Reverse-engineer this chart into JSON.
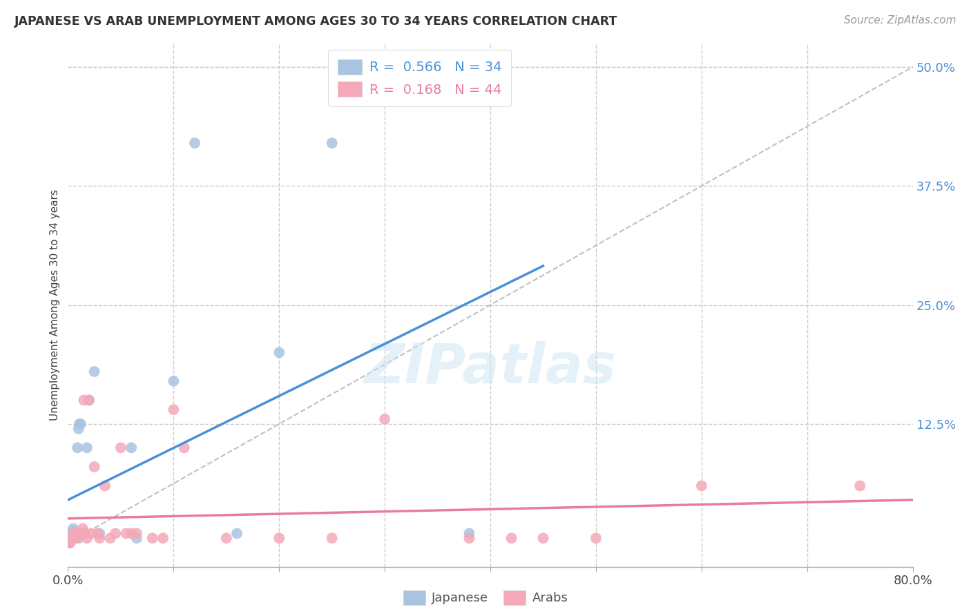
{
  "title": "JAPANESE VS ARAB UNEMPLOYMENT AMONG AGES 30 TO 34 YEARS CORRELATION CHART",
  "source": "Source: ZipAtlas.com",
  "ylabel": "Unemployment Among Ages 30 to 34 years",
  "xlim": [
    0.0,
    0.8
  ],
  "ylim": [
    -0.025,
    0.525
  ],
  "xtick_positions": [
    0.0,
    0.1,
    0.2,
    0.3,
    0.4,
    0.5,
    0.6,
    0.7,
    0.8
  ],
  "xticklabels": [
    "0.0%",
    "",
    "",
    "",
    "",
    "",
    "",
    "",
    "80.0%"
  ],
  "ytick_positions": [
    0.0,
    0.125,
    0.25,
    0.375,
    0.5
  ],
  "yticklabels_right": [
    "",
    "12.5%",
    "25.0%",
    "37.5%",
    "50.0%"
  ],
  "grid_color": "#cccccc",
  "background_color": "#ffffff",
  "japanese_color": "#a8c4e0",
  "arab_color": "#f4a8b8",
  "japanese_line_color": "#4a90d9",
  "arab_line_color": "#e87d9a",
  "diagonal_color": "#c0c0c0",
  "legend_japanese_R": "0.566",
  "legend_japanese_N": "34",
  "legend_arab_R": "0.168",
  "legend_arab_N": "44",
  "watermark": "ZIPatlas",
  "jp_x": [
    0.0,
    0.001,
    0.001,
    0.002,
    0.002,
    0.003,
    0.003,
    0.004,
    0.005,
    0.005,
    0.006,
    0.006,
    0.007,
    0.008,
    0.009,
    0.01,
    0.01,
    0.011,
    0.012,
    0.013,
    0.015,
    0.016,
    0.018,
    0.02,
    0.025,
    0.03,
    0.06,
    0.065,
    0.1,
    0.12,
    0.16,
    0.2,
    0.25,
    0.38
  ],
  "jp_y": [
    0.0,
    0.002,
    0.005,
    0.005,
    0.01,
    0.008,
    0.01,
    0.01,
    0.01,
    0.015,
    0.012,
    0.01,
    0.01,
    0.01,
    0.1,
    0.12,
    0.005,
    0.125,
    0.125,
    0.01,
    0.01,
    0.01,
    0.1,
    0.15,
    0.18,
    0.01,
    0.1,
    0.005,
    0.17,
    0.42,
    0.01,
    0.2,
    0.42,
    0.01
  ],
  "ar_x": [
    0.0,
    0.0,
    0.001,
    0.002,
    0.003,
    0.003,
    0.004,
    0.005,
    0.005,
    0.006,
    0.007,
    0.008,
    0.01,
    0.012,
    0.014,
    0.015,
    0.016,
    0.018,
    0.02,
    0.022,
    0.025,
    0.028,
    0.03,
    0.035,
    0.04,
    0.045,
    0.05,
    0.055,
    0.06,
    0.065,
    0.08,
    0.09,
    0.1,
    0.11,
    0.15,
    0.2,
    0.25,
    0.3,
    0.38,
    0.42,
    0.45,
    0.5,
    0.6,
    0.75
  ],
  "ar_y": [
    0.0,
    0.002,
    0.0,
    0.0,
    0.005,
    0.003,
    0.005,
    0.005,
    0.01,
    0.01,
    0.01,
    0.005,
    0.01,
    0.01,
    0.015,
    0.15,
    0.01,
    0.005,
    0.15,
    0.01,
    0.08,
    0.01,
    0.005,
    0.06,
    0.005,
    0.01,
    0.1,
    0.01,
    0.01,
    0.01,
    0.005,
    0.005,
    0.14,
    0.1,
    0.005,
    0.005,
    0.005,
    0.13,
    0.005,
    0.005,
    0.005,
    0.005,
    0.06,
    0.06
  ]
}
